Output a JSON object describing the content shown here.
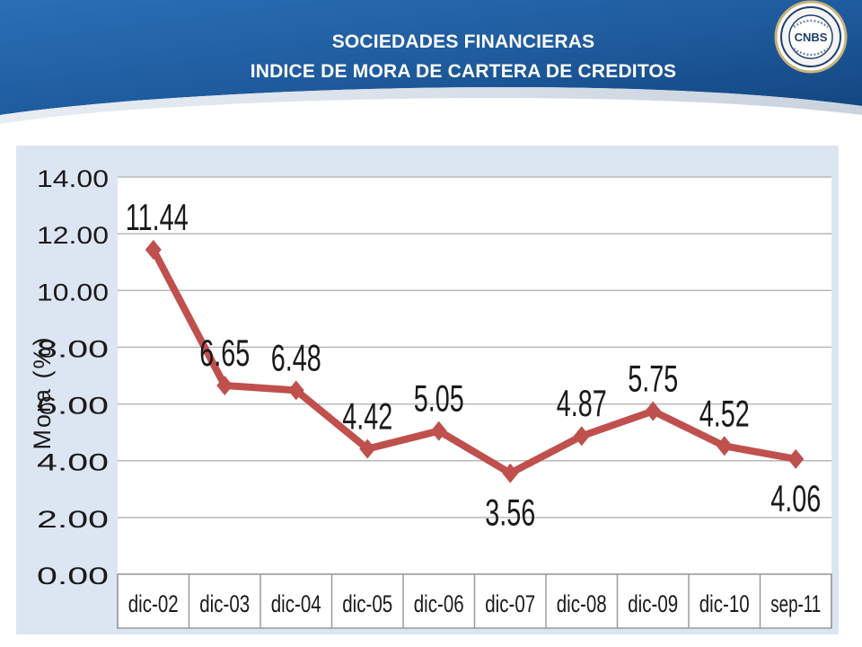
{
  "slide": {
    "title_line1": "SOCIEDADES FINANCIERAS",
    "title_line2": "INDICE DE MORA DE CARTERA DE CREDITOS",
    "logo_text": "CNBS",
    "colors": {
      "header_blue": "#1f5fa3",
      "chart_background": "#dce6f2",
      "series_line": "#c0504d"
    }
  },
  "chart_data": {
    "type": "line",
    "title": "",
    "xlabel": "",
    "ylabel": "Mora  (%)",
    "categories": [
      "dic-02",
      "dic-03",
      "dic-04",
      "dic-05",
      "dic-06",
      "dic-07",
      "dic-08",
      "dic-09",
      "dic-10",
      "sep-11"
    ],
    "series": [
      {
        "values": [
          11.44,
          6.65,
          6.48,
          4.42,
          5.05,
          3.56,
          4.87,
          5.75,
          4.52,
          4.06
        ]
      }
    ],
    "data_labels": [
      "11.44",
      "6.65",
      "6.48",
      "4.42",
      "5.05",
      "3.56",
      "4.87",
      "5.75",
      "4.52",
      "4.06"
    ],
    "ylim": [
      0,
      14
    ],
    "y_ticks": [
      0,
      2,
      4,
      6,
      8,
      10,
      12,
      14
    ],
    "y_tick_labels": [
      "0.00",
      "2.00",
      "4.00",
      "6.00",
      "8.00",
      "10.00",
      "12.00",
      "14.00"
    ],
    "grid": true,
    "legend": "none"
  }
}
